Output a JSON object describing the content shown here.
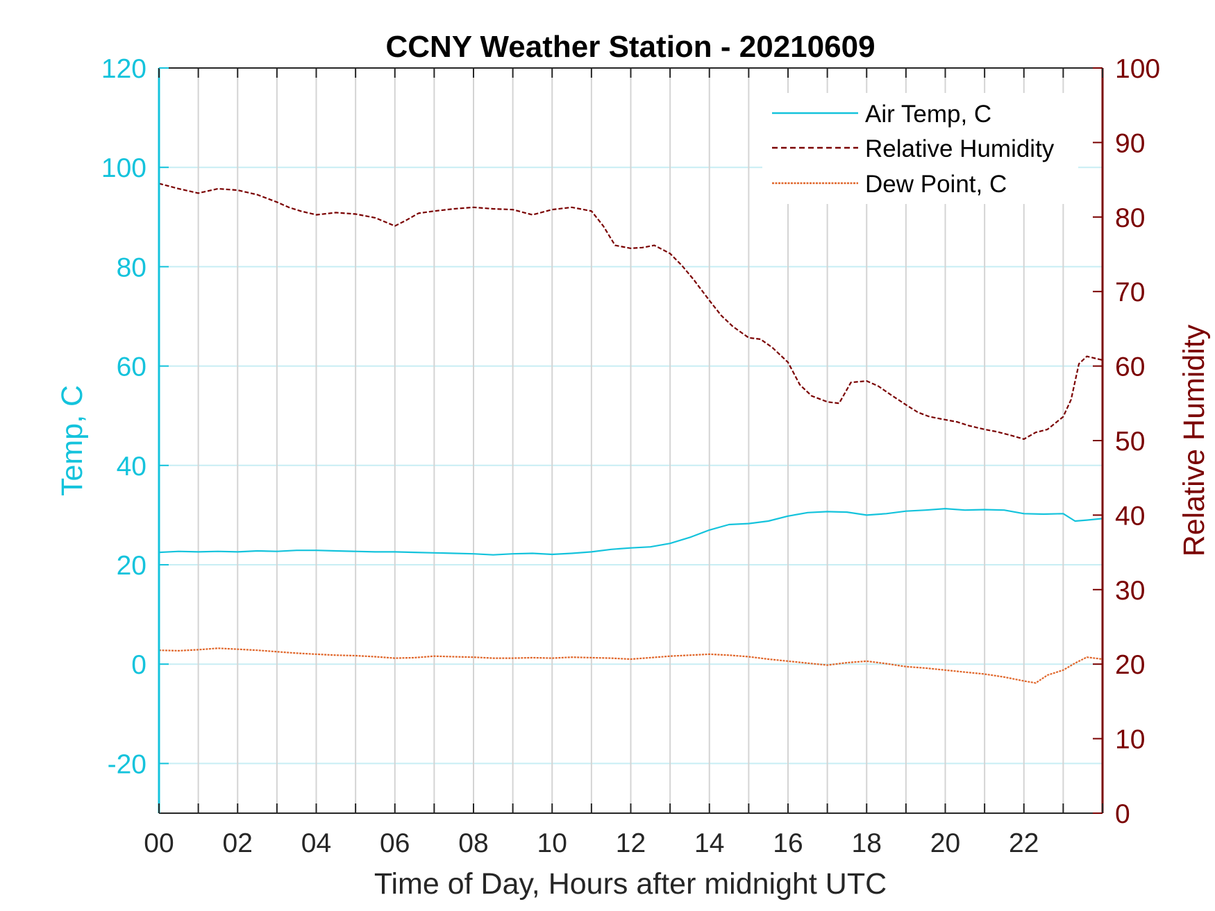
{
  "chart_data": {
    "type": "line",
    "title": "CCNY Weather Station - 20210609",
    "xlabel": "Time of Day, Hours after midnight UTC",
    "ylabel_left": "Temp, C",
    "ylabel_right": "Relative Humidity",
    "xlim": [
      0,
      24
    ],
    "ylim_left": [
      -30,
      120
    ],
    "ylim_right": [
      0,
      100
    ],
    "x_ticks": [
      0,
      2,
      4,
      6,
      8,
      10,
      12,
      14,
      16,
      18,
      20,
      22
    ],
    "x_tick_labels": [
      "00",
      "02",
      "04",
      "06",
      "08",
      "10",
      "12",
      "14",
      "16",
      "18",
      "20",
      "22"
    ],
    "y_left_ticks": [
      -20,
      0,
      20,
      40,
      60,
      80,
      100,
      120
    ],
    "y_left_tick_labels": [
      "-20",
      "0",
      "20",
      "40",
      "60",
      "80",
      "100",
      "120"
    ],
    "y_right_ticks": [
      0,
      10,
      20,
      30,
      40,
      50,
      60,
      70,
      80,
      90,
      100
    ],
    "y_right_tick_labels": [
      "0",
      "10",
      "20",
      "30",
      "40",
      "50",
      "60",
      "70",
      "80",
      "90",
      "100"
    ],
    "grid": true,
    "legend_position": "top-right",
    "colors": {
      "left_axis": "#14c3dc",
      "right_axis": "#7a0000",
      "dew": "#e0662a",
      "grid_v": "#d4d4d4",
      "grid_h": "#c8eef4"
    },
    "series": [
      {
        "name": "Air Temp, C",
        "axis": "left",
        "style": "solid",
        "x": [
          0,
          0.5,
          1,
          1.5,
          2,
          2.5,
          3,
          3.5,
          4,
          4.5,
          5,
          5.5,
          6,
          6.5,
          7,
          7.5,
          8,
          8.5,
          9,
          9.5,
          10,
          10.5,
          11,
          11.5,
          12,
          12.5,
          13,
          13.5,
          14,
          14.5,
          15,
          15.5,
          16,
          16.5,
          17,
          17.5,
          18,
          18.5,
          19,
          19.5,
          20,
          20.5,
          21,
          21.5,
          22,
          22.5,
          23,
          23.3,
          23.6,
          24
        ],
        "values": [
          22.5,
          22.7,
          22.6,
          22.7,
          22.6,
          22.8,
          22.7,
          22.9,
          22.9,
          22.8,
          22.7,
          22.6,
          22.6,
          22.5,
          22.4,
          22.3,
          22.2,
          22.0,
          22.2,
          22.3,
          22.1,
          22.3,
          22.6,
          23.1,
          23.4,
          23.6,
          24.3,
          25.5,
          27.0,
          28.1,
          28.3,
          28.8,
          29.8,
          30.5,
          30.7,
          30.6,
          30.0,
          30.3,
          30.8,
          31.0,
          31.3,
          31.0,
          31.1,
          31.0,
          30.3,
          30.2,
          30.3,
          28.8,
          29.0,
          29.3
        ]
      },
      {
        "name": "Relative Humidity",
        "axis": "right",
        "style": "dashed",
        "x": [
          0,
          0.5,
          1,
          1.5,
          2,
          2.5,
          3,
          3.3,
          3.6,
          4,
          4.5,
          5,
          5.5,
          6,
          6.3,
          6.6,
          7,
          7.5,
          8,
          8.5,
          9,
          9.5,
          10,
          10.5,
          11,
          11.3,
          11.6,
          12,
          12.3,
          12.6,
          13,
          13.3,
          13.6,
          14,
          14.3,
          14.6,
          15,
          15.3,
          15.6,
          16,
          16.3,
          16.6,
          17,
          17.3,
          17.6,
          18,
          18.3,
          18.6,
          19,
          19.3,
          19.6,
          20,
          20.3,
          20.6,
          21,
          21.3,
          21.6,
          22,
          22.3,
          22.6,
          23,
          23.2,
          23.4,
          23.6,
          24
        ],
        "values": [
          84.5,
          83.8,
          83.2,
          83.8,
          83.6,
          83.0,
          82.0,
          81.3,
          80.8,
          80.3,
          80.6,
          80.4,
          79.9,
          78.8,
          79.6,
          80.5,
          80.8,
          81.1,
          81.3,
          81.1,
          81.0,
          80.3,
          81.0,
          81.3,
          80.8,
          78.8,
          76.2,
          75.8,
          75.9,
          76.2,
          75.1,
          73.5,
          71.6,
          68.8,
          66.8,
          65.3,
          63.8,
          63.6,
          62.5,
          60.5,
          57.5,
          56.0,
          55.2,
          55.0,
          57.8,
          58.0,
          57.3,
          56.2,
          54.8,
          53.8,
          53.2,
          52.8,
          52.5,
          52.0,
          51.5,
          51.2,
          50.8,
          50.2,
          51.1,
          51.5,
          53.2,
          55.5,
          60.3,
          61.3,
          60.8
        ]
      },
      {
        "name": "Dew Point, C",
        "axis": "left",
        "style": "dashdot",
        "x": [
          0,
          0.5,
          1,
          1.5,
          2,
          2.5,
          3,
          3.5,
          4,
          4.5,
          5,
          5.5,
          6,
          6.5,
          7,
          7.5,
          8,
          8.5,
          9,
          9.5,
          10,
          10.5,
          11,
          11.5,
          12,
          12.5,
          13,
          13.5,
          14,
          14.5,
          15,
          15.5,
          16,
          16.5,
          17,
          17.5,
          18,
          18.5,
          19,
          19.5,
          20,
          20.5,
          21,
          21.5,
          22,
          22.3,
          22.6,
          23,
          23.3,
          23.6,
          24
        ],
        "values": [
          2.8,
          2.7,
          2.9,
          3.2,
          3.0,
          2.8,
          2.5,
          2.2,
          2.0,
          1.8,
          1.7,
          1.5,
          1.2,
          1.3,
          1.6,
          1.5,
          1.4,
          1.2,
          1.2,
          1.3,
          1.2,
          1.4,
          1.3,
          1.2,
          1.0,
          1.3,
          1.6,
          1.8,
          2.0,
          1.8,
          1.5,
          1.0,
          0.6,
          0.2,
          -0.2,
          0.3,
          0.6,
          0.1,
          -0.5,
          -0.8,
          -1.2,
          -1.6,
          -2.0,
          -2.6,
          -3.4,
          -3.8,
          -2.2,
          -1.2,
          0.2,
          1.4,
          1.0
        ]
      }
    ]
  }
}
